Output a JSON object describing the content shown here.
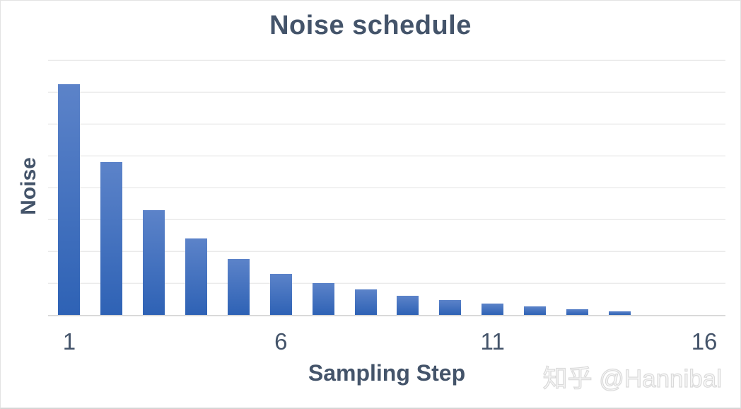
{
  "watermark": {
    "text": "知乎 @Hannibal"
  },
  "chart_data": {
    "type": "bar",
    "title": "Noise schedule",
    "xlabel": "Sampling Step",
    "ylabel": "Noise",
    "categories": [
      1,
      2,
      3,
      4,
      5,
      6,
      7,
      8,
      9,
      10,
      11,
      12,
      13,
      14,
      15,
      16
    ],
    "values": [
      7.25,
      4.8,
      3.3,
      2.4,
      1.75,
      1.3,
      1.0,
      0.8,
      0.6,
      0.47,
      0.36,
      0.27,
      0.18,
      0.11,
      0,
      0
    ],
    "x_tick_labels": [
      1,
      6,
      11,
      16
    ],
    "ylim": [
      0,
      8
    ],
    "gridline_step": 1,
    "grid": true,
    "legend": "none",
    "y_tick_labels_shown": false,
    "colors": {
      "bar_gradient_top": "#5c83c9",
      "bar_gradient_bottom": "#2e62b5",
      "gridline": "#e4e4e4",
      "axis_line": "#d9d9d9",
      "text": "#44546a"
    }
  }
}
